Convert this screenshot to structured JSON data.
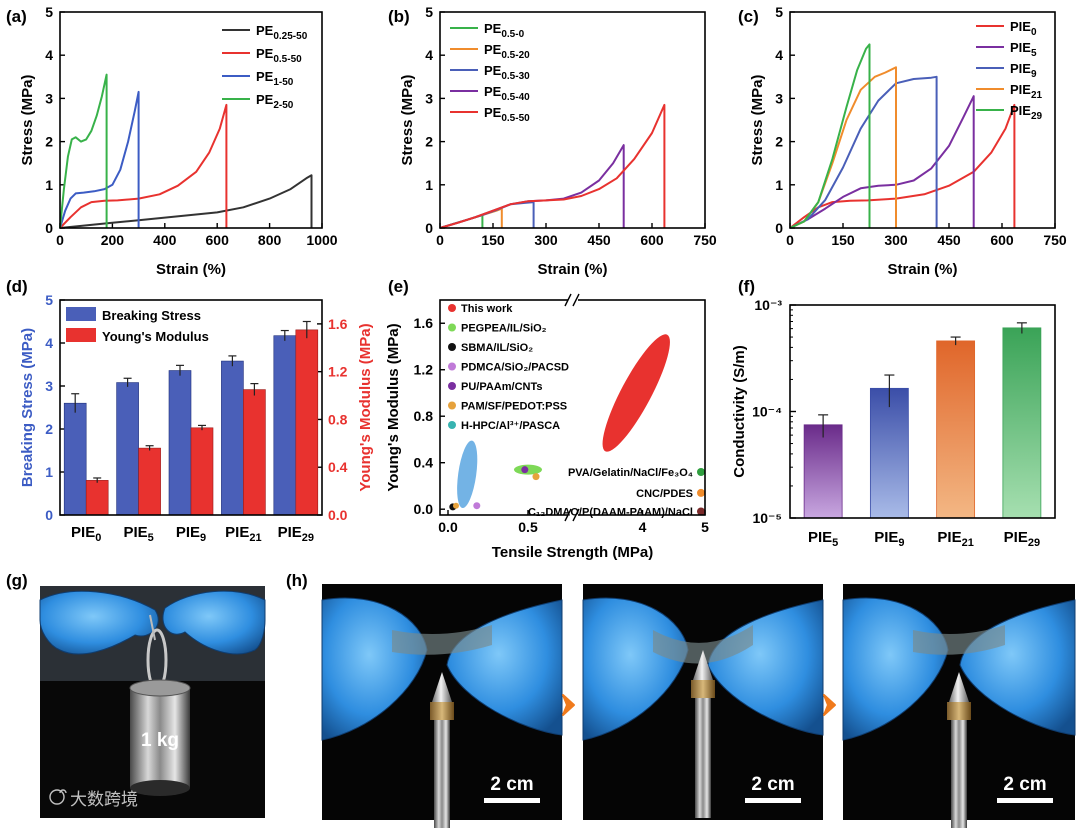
{
  "panels": {
    "a": {
      "label": "(a)",
      "xlabel": "Strain (%)",
      "ylabel": "Stress (MPa)",
      "xticks": [
        "0",
        "200",
        "400",
        "600",
        "800",
        "1000"
      ],
      "yticks": [
        "0",
        "1",
        "2",
        "3",
        "4",
        "5"
      ],
      "legend": [
        {
          "main": "PE",
          "sub": "0.25-50",
          "color": "#333333"
        },
        {
          "main": "PE",
          "sub": "0.5-50",
          "color": "#e8322f"
        },
        {
          "main": "PE",
          "sub": "1-50",
          "color": "#3c5cc4"
        },
        {
          "main": "PE",
          "sub": "2-50",
          "color": "#38b24a"
        }
      ]
    },
    "b": {
      "label": "(b)",
      "xlabel": "Strain (%)",
      "ylabel": "Stress (MPa)",
      "xticks": [
        "0",
        "150",
        "300",
        "450",
        "600",
        "750"
      ],
      "yticks": [
        "0",
        "1",
        "2",
        "3",
        "4",
        "5"
      ],
      "legend": [
        {
          "main": "PE",
          "sub": "0.5-0",
          "color": "#38b24a"
        },
        {
          "main": "PE",
          "sub": "0.5-20",
          "color": "#f08c2c"
        },
        {
          "main": "PE",
          "sub": "0.5-30",
          "color": "#4a5fb8"
        },
        {
          "main": "PE",
          "sub": "0.5-40",
          "color": "#7a2fa0"
        },
        {
          "main": "PE",
          "sub": "0.5-50",
          "color": "#e8322f"
        }
      ]
    },
    "c": {
      "label": "(c)",
      "xlabel": "Strain (%)",
      "ylabel": "Stress (MPa)",
      "xticks": [
        "0",
        "150",
        "300",
        "450",
        "600",
        "750"
      ],
      "yticks": [
        "0",
        "1",
        "2",
        "3",
        "4",
        "5"
      ],
      "legend": [
        {
          "main": "PIE",
          "sub": "0",
          "color": "#e8322f"
        },
        {
          "main": "PIE",
          "sub": "5",
          "color": "#7a2fa0"
        },
        {
          "main": "PIE",
          "sub": "9",
          "color": "#4a5fb8"
        },
        {
          "main": "PIE",
          "sub": "21",
          "color": "#f08c2c"
        },
        {
          "main": "PIE",
          "sub": "29",
          "color": "#38b24a"
        }
      ]
    },
    "d": {
      "label": "(d)",
      "ylabel_left": "Breaking Stress (MPa)",
      "ylabel_right": "Young's Modulus (MPa)",
      "yticks_left": [
        "0",
        "1",
        "2",
        "3",
        "4",
        "5"
      ],
      "yticks_right": [
        "0.0",
        "0.4",
        "0.8",
        "1.2",
        "1.6"
      ],
      "categories": [
        {
          "main": "PIE",
          "sub": "0"
        },
        {
          "main": "PIE",
          "sub": "5"
        },
        {
          "main": "PIE",
          "sub": "9"
        },
        {
          "main": "PIE",
          "sub": "21"
        },
        {
          "main": "PIE",
          "sub": "29"
        }
      ],
      "legend": [
        "Breaking Stress",
        "Young's Modulus"
      ]
    },
    "e": {
      "label": "(e)",
      "xlabel": "Tensile Strength (MPa)",
      "ylabel": "Young's Modulus (MPa)",
      "xticks": [
        "0.0",
        "0.5",
        "4",
        "5"
      ],
      "yticks": [
        "0.0",
        "0.4",
        "0.8",
        "1.2",
        "1.6"
      ],
      "legend": [
        {
          "text": "This work",
          "color": "#e8322f"
        },
        {
          "text": "PEGPEA/IL/SiO₂",
          "color": "#7ed957"
        },
        {
          "text": "SBMA/IL/SiO₂",
          "color": "#111111"
        },
        {
          "text": "PDMCA/SiO₂/PACSD",
          "color": "#c07ad8"
        },
        {
          "text": "PU/PAAm/CNTs",
          "color": "#7a2fa0"
        },
        {
          "text": "PAM/SF/PEDOT:PSS",
          "color": "#e6a23c"
        },
        {
          "text": "H-HPC/Al³⁺/PASCA",
          "color": "#37b3b0"
        }
      ],
      "right_labels": [
        {
          "text": "PVA/Gelatin/NaCl/Fe₃O₄",
          "color": "#2f9e3f"
        },
        {
          "text": "CNC/PDES",
          "color": "#f08c2c"
        },
        {
          "text": "C₁₂DMAO/P(DAAM-PAAM)/NaCl",
          "color": "#7a2a2a"
        }
      ]
    },
    "f": {
      "label": "(f)",
      "ylabel": "Conductivity (S/m)",
      "yticks": [
        "10⁻³",
        "10⁻⁴",
        "10⁻⁵"
      ],
      "categories": [
        {
          "main": "PIE",
          "sub": "5"
        },
        {
          "main": "PIE",
          "sub": "9"
        },
        {
          "main": "PIE",
          "sub": "21"
        },
        {
          "main": "PIE",
          "sub": "29"
        }
      ]
    },
    "g": {
      "label": "(g)",
      "weight_text": "1 kg"
    },
    "h": {
      "label": "(h)",
      "scale_text": "2 cm"
    }
  },
  "watermark": "大数跨境",
  "chart_data": [
    {
      "type": "line",
      "panel": "a",
      "xlabel": "Strain (%)",
      "ylabel": "Stress (MPa)",
      "xlim": [
        0,
        1000
      ],
      "ylim": [
        0,
        5
      ],
      "series": [
        {
          "name": "PE0.25-50",
          "color": "#333333",
          "x": [
            0,
            100,
            200,
            300,
            400,
            500,
            600,
            700,
            800,
            880,
            940,
            960,
            960
          ],
          "y": [
            0,
            0.06,
            0.12,
            0.18,
            0.24,
            0.3,
            0.36,
            0.48,
            0.68,
            0.9,
            1.15,
            1.22,
            0
          ]
        },
        {
          "name": "PE0.5-50",
          "color": "#e8322f",
          "x": [
            0,
            40,
            80,
            120,
            170,
            220,
            300,
            380,
            450,
            520,
            570,
            610,
            635,
            635
          ],
          "y": [
            0,
            0.25,
            0.48,
            0.6,
            0.63,
            0.64,
            0.68,
            0.78,
            0.98,
            1.3,
            1.75,
            2.3,
            2.85,
            0
          ]
        },
        {
          "name": "PE1-50",
          "color": "#3c5cc4",
          "x": [
            0,
            20,
            40,
            60,
            90,
            130,
            170,
            200,
            230,
            260,
            285,
            300,
            300
          ],
          "y": [
            0,
            0.4,
            0.68,
            0.8,
            0.82,
            0.85,
            0.9,
            1.0,
            1.35,
            2.0,
            2.7,
            3.15,
            0
          ]
        },
        {
          "name": "PE2-50",
          "color": "#38b24a",
          "x": [
            0,
            15,
            30,
            45,
            60,
            80,
            100,
            120,
            140,
            160,
            178,
            178
          ],
          "y": [
            0,
            0.9,
            1.65,
            2.05,
            2.1,
            2.0,
            2.05,
            2.25,
            2.6,
            3.05,
            3.55,
            0
          ]
        }
      ]
    },
    {
      "type": "line",
      "panel": "b",
      "xlabel": "Strain (%)",
      "ylabel": "Stress (MPa)",
      "xlim": [
        0,
        750
      ],
      "ylim": [
        0,
        5
      ],
      "series": [
        {
          "name": "PE0.5-0",
          "color": "#38b24a",
          "x": [
            0,
            40,
            80,
            120,
            120
          ],
          "y": [
            0,
            0.1,
            0.2,
            0.3,
            0
          ]
        },
        {
          "name": "PE0.5-20",
          "color": "#f08c2c",
          "x": [
            0,
            40,
            80,
            120,
            160,
            175,
            175
          ],
          "y": [
            0,
            0.1,
            0.2,
            0.3,
            0.4,
            0.45,
            0
          ]
        },
        {
          "name": "PE0.5-30",
          "color": "#4a5fb8",
          "x": [
            0,
            40,
            80,
            120,
            160,
            200,
            240,
            265,
            265
          ],
          "y": [
            0,
            0.1,
            0.2,
            0.3,
            0.42,
            0.55,
            0.58,
            0.6,
            0
          ]
        },
        {
          "name": "PE0.5-40",
          "color": "#7a2fa0",
          "x": [
            0,
            50,
            100,
            150,
            200,
            250,
            300,
            350,
            400,
            450,
            490,
            520,
            520
          ],
          "y": [
            0,
            0.12,
            0.25,
            0.4,
            0.55,
            0.62,
            0.64,
            0.68,
            0.82,
            1.1,
            1.5,
            1.92,
            0
          ]
        },
        {
          "name": "PE0.5-50",
          "color": "#e8322f",
          "x": [
            0,
            50,
            100,
            150,
            200,
            250,
            300,
            350,
            400,
            450,
            500,
            550,
            600,
            635,
            635
          ],
          "y": [
            0,
            0.12,
            0.25,
            0.4,
            0.55,
            0.62,
            0.64,
            0.66,
            0.74,
            0.9,
            1.15,
            1.6,
            2.2,
            2.85,
            0
          ]
        }
      ]
    },
    {
      "type": "line",
      "panel": "c",
      "xlabel": "Strain (%)",
      "ylabel": "Stress (MPa)",
      "xlim": [
        0,
        750
      ],
      "ylim": [
        0,
        5
      ],
      "series": [
        {
          "name": "PIE0",
          "color": "#e8322f",
          "x": [
            0,
            40,
            80,
            120,
            170,
            220,
            300,
            380,
            450,
            520,
            570,
            610,
            635,
            635
          ],
          "y": [
            0,
            0.25,
            0.48,
            0.6,
            0.63,
            0.64,
            0.68,
            0.78,
            0.98,
            1.3,
            1.75,
            2.3,
            2.85,
            0
          ]
        },
        {
          "name": "PIE5",
          "color": "#7a2fa0",
          "x": [
            0,
            50,
            100,
            150,
            200,
            250,
            300,
            350,
            400,
            450,
            490,
            520,
            520
          ],
          "y": [
            0,
            0.2,
            0.45,
            0.72,
            0.92,
            0.98,
            1.0,
            1.1,
            1.38,
            1.9,
            2.55,
            3.05,
            0
          ]
        },
        {
          "name": "PIE9",
          "color": "#4a5fb8",
          "x": [
            0,
            50,
            100,
            150,
            200,
            250,
            300,
            350,
            400,
            415,
            415
          ],
          "y": [
            0,
            0.2,
            0.65,
            1.4,
            2.3,
            2.95,
            3.35,
            3.45,
            3.48,
            3.5,
            0
          ]
        },
        {
          "name": "PIE21",
          "color": "#f08c2c",
          "x": [
            0,
            40,
            80,
            120,
            160,
            200,
            240,
            270,
            300,
            300
          ],
          "y": [
            0,
            0.15,
            0.6,
            1.5,
            2.5,
            3.2,
            3.5,
            3.6,
            3.72,
            0
          ]
        },
        {
          "name": "PIE29",
          "color": "#38b24a",
          "x": [
            0,
            40,
            80,
            120,
            160,
            190,
            215,
            225,
            225
          ],
          "y": [
            0,
            0.15,
            0.6,
            1.6,
            2.8,
            3.65,
            4.15,
            4.25,
            0
          ]
        }
      ]
    },
    {
      "type": "bar",
      "panel": "d",
      "categories": [
        "PIE0",
        "PIE5",
        "PIE9",
        "PIE21",
        "PIE29"
      ],
      "series": [
        {
          "name": "Breaking Stress",
          "axis": "left",
          "color": "#4a5fb8",
          "values": [
            2.6,
            3.08,
            3.36,
            3.58,
            4.17
          ],
          "errors": [
            0.22,
            0.1,
            0.12,
            0.12,
            0.12
          ]
        },
        {
          "name": "Young's Modulus",
          "axis": "right",
          "color": "#e8322f",
          "values": [
            0.29,
            0.56,
            0.73,
            1.05,
            1.55
          ],
          "errors": [
            0.02,
            0.02,
            0.02,
            0.05,
            0.07
          ]
        }
      ],
      "ylim_left": [
        0,
        5
      ],
      "ylim_right": [
        0,
        1.8
      ]
    },
    {
      "type": "scatter",
      "panel": "e",
      "xlabel": "Tensile Strength (MPa)",
      "ylabel": "Young's Modulus (MPa)",
      "ylim": [
        -0.05,
        1.8
      ],
      "points": [
        {
          "name": "This work",
          "x": 3.9,
          "y": 1.0,
          "color": "#e8322f"
        },
        {
          "name": "PEGPEA/IL/SiO2",
          "x": 0.5,
          "y": 0.34,
          "color": "#7ed957"
        },
        {
          "name": "SBMA/IL/SiO2",
          "x": 0.03,
          "y": 0.02,
          "color": "#111111"
        },
        {
          "name": "PDMCA/SiO2/PACSD",
          "x": 0.18,
          "y": 0.03,
          "color": "#c07ad8"
        },
        {
          "name": "PU/PAAm/CNTs",
          "x": 0.48,
          "y": 0.34,
          "color": "#7a2fa0"
        },
        {
          "name": "PAM/SF/PEDOT:PSS",
          "x": 0.55,
          "y": 0.28,
          "color": "#e6a23c"
        },
        {
          "name": "H-HPC/Al3+/PASCA",
          "x": 0.12,
          "y": 0.3,
          "color": "#5aa6e0"
        },
        {
          "name": "PVA/Gelatin/NaCl/Fe3O4",
          "x": 4.95,
          "y": 0.32,
          "color": "#2f9e3f"
        },
        {
          "name": "CNC/PDES",
          "x": 4.95,
          "y": 0.14,
          "color": "#f08c2c"
        },
        {
          "name": "C12DMAO/P(DAAM-PAAM)/NaCl",
          "x": 4.95,
          "y": -0.02,
          "color": "#7a2a2a"
        }
      ]
    },
    {
      "type": "bar",
      "panel": "f",
      "ylabel": "Conductivity (S/m)",
      "yscale": "log",
      "ylim": [
        1e-05,
        0.001
      ],
      "categories": [
        "PIE5",
        "PIE9",
        "PIE21",
        "PIE29"
      ],
      "values": [
        7.5e-05,
        0.000165,
        0.00046,
        0.00061
      ],
      "errors": [
        1.8e-05,
        5.5e-05,
        4e-05,
        7e-05
      ],
      "colors": [
        [
          "#c8a7e0",
          "#6a2b8a"
        ],
        [
          "#a9bbe8",
          "#3b4ea8"
        ],
        [
          "#f3b784",
          "#e0662a"
        ],
        [
          "#a6dfb0",
          "#3aa357"
        ]
      ]
    }
  ]
}
